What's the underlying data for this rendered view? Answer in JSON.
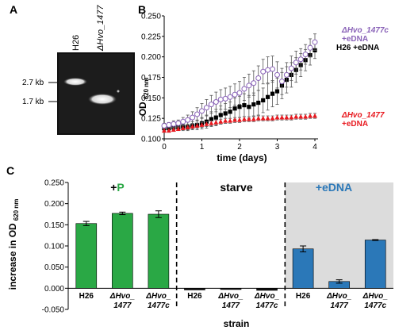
{
  "panels": {
    "A": "A",
    "B": "B",
    "C": "C"
  },
  "gel": {
    "lanes": [
      "H26",
      "ΔHvo_1477"
    ],
    "size_markers": [
      "2.7 kb",
      "1.7 kb"
    ],
    "bands": [
      {
        "lane": "H26",
        "marker": "2.7 kb"
      },
      {
        "lane": "ΔHvo_1477",
        "marker": "1.7 kb"
      }
    ]
  },
  "colors": {
    "h26": "#000000",
    "delta": "#e8191f",
    "comp": "#8a63b8",
    "green": "#2aa845",
    "blue": "#2b78b8",
    "shade": "#dcdcdc"
  },
  "chart_b": {
    "type": "scatter",
    "ylabel_main": "OD",
    "ylabel_sub": "620 nm",
    "xlabel": "time (days)",
    "x_ticks": [
      "0",
      "1",
      "2",
      "3",
      "4"
    ],
    "y_ticks": [
      "0.100",
      "0.125",
      "0.150",
      "0.175",
      "0.200",
      "0.225",
      "0.250"
    ],
    "legend": {
      "comp_line1": "ΔHvo_1477c",
      "comp_line2": "+eDNA",
      "h26": "H26 +eDNA",
      "delta_line1": "ΔHvo_1477",
      "delta_line2": "+eDNA"
    }
  },
  "chart_c": {
    "type": "bar",
    "ylabel_main": "increase in OD",
    "ylabel_sub": "620 nm",
    "xlabel": "strain",
    "y_ticks": [
      "0.250",
      "0.200",
      "0.150",
      "0.100",
      "0.050",
      "0.000",
      "-0.050"
    ],
    "groups": [
      {
        "label_prefix": "+",
        "label_main": "P"
      },
      {
        "label_main": "starve"
      },
      {
        "label_main": "+eDNA"
      }
    ],
    "x_labels": [
      [
        "H26"
      ],
      [
        "ΔHvo_",
        "1477"
      ],
      [
        "ΔHvo_",
        "1477c"
      ],
      [
        "H26"
      ],
      [
        "ΔHvo_",
        "1477"
      ],
      [
        "ΔHvo_",
        "1477c"
      ],
      [
        "H26"
      ],
      [
        "ΔHvo_",
        "1477"
      ],
      [
        "ΔHvo_",
        "1477c"
      ]
    ]
  },
  "chart_data": [
    {
      "type": "scatter",
      "title": "",
      "xlabel": "time (days)",
      "ylabel": "OD 620 nm",
      "xlim": [
        0,
        4
      ],
      "ylim": [
        0.1,
        0.25
      ],
      "series": [
        {
          "name": "H26 +eDNA",
          "marker": "filled-square",
          "x": [
            0,
            0.125,
            0.25,
            0.375,
            0.5,
            0.625,
            0.75,
            0.875,
            1,
            1.125,
            1.25,
            1.375,
            1.5,
            1.625,
            1.75,
            1.875,
            2,
            2.125,
            2.25,
            2.375,
            2.5,
            2.625,
            2.75,
            2.875,
            3,
            3.125,
            3.25,
            3.375,
            3.5,
            3.625,
            3.75,
            3.875,
            4
          ],
          "y": [
            0.113,
            0.113,
            0.114,
            0.114,
            0.115,
            0.114,
            0.116,
            0.117,
            0.119,
            0.121,
            0.124,
            0.126,
            0.129,
            0.131,
            0.133,
            0.137,
            0.139,
            0.141,
            0.139,
            0.142,
            0.144,
            0.147,
            0.151,
            0.155,
            0.158,
            0.165,
            0.172,
            0.178,
            0.184,
            0.19,
            0.196,
            0.202,
            0.208
          ],
          "error": [
            0.003,
            0.003,
            0.003,
            0.003,
            0.004,
            0.004,
            0.005,
            0.006,
            0.007,
            0.008,
            0.009,
            0.01,
            0.011,
            0.012,
            0.012,
            0.013,
            0.013,
            0.014,
            0.014,
            0.014,
            0.015,
            0.015,
            0.016,
            0.016,
            0.016,
            0.016,
            0.016,
            0.015,
            0.015,
            0.014,
            0.013,
            0.012,
            0.01
          ]
        },
        {
          "name": "ΔHvo_1477c +eDNA",
          "marker": "open-circle",
          "x": [
            0,
            0.125,
            0.25,
            0.375,
            0.5,
            0.625,
            0.75,
            0.875,
            1,
            1.125,
            1.25,
            1.375,
            1.5,
            1.625,
            1.75,
            1.875,
            2,
            2.125,
            2.25,
            2.375,
            2.5,
            2.625,
            2.75,
            2.875,
            3,
            3.125,
            3.25,
            3.375,
            3.5,
            3.625,
            3.75,
            3.875,
            4
          ],
          "y": [
            0.116,
            0.117,
            0.118,
            0.119,
            0.121,
            0.123,
            0.126,
            0.13,
            0.134,
            0.138,
            0.142,
            0.145,
            0.148,
            0.149,
            0.151,
            0.154,
            0.156,
            0.161,
            0.165,
            0.168,
            0.174,
            0.182,
            0.184,
            0.185,
            0.178,
            0.17,
            0.178,
            0.186,
            0.193,
            0.197,
            0.203,
            0.211,
            0.218
          ],
          "error": [
            0.003,
            0.003,
            0.004,
            0.004,
            0.005,
            0.006,
            0.007,
            0.008,
            0.009,
            0.01,
            0.011,
            0.012,
            0.012,
            0.013,
            0.013,
            0.013,
            0.014,
            0.014,
            0.014,
            0.015,
            0.015,
            0.015,
            0.016,
            0.016,
            0.016,
            0.016,
            0.015,
            0.015,
            0.014,
            0.013,
            0.012,
            0.011,
            0.01
          ]
        },
        {
          "name": "ΔHvo_1477 +eDNA",
          "marker": "filled-triangle",
          "x": [
            0,
            0.125,
            0.25,
            0.375,
            0.5,
            0.625,
            0.75,
            0.875,
            1,
            1.125,
            1.25,
            1.375,
            1.5,
            1.625,
            1.75,
            1.875,
            2,
            2.125,
            2.25,
            2.375,
            2.5,
            2.625,
            2.75,
            2.875,
            3,
            3.125,
            3.25,
            3.375,
            3.5,
            3.625,
            3.75,
            3.875,
            4
          ],
          "y": [
            0.11,
            0.11,
            0.111,
            0.112,
            0.113,
            0.114,
            0.115,
            0.116,
            0.117,
            0.118,
            0.119,
            0.12,
            0.121,
            0.122,
            0.122,
            0.123,
            0.123,
            0.124,
            0.124,
            0.124,
            0.125,
            0.125,
            0.125,
            0.125,
            0.126,
            0.126,
            0.126,
            0.126,
            0.127,
            0.127,
            0.127,
            0.128,
            0.128
          ],
          "error": [
            0.002,
            0.002,
            0.002,
            0.002,
            0.003,
            0.003,
            0.003,
            0.003,
            0.003,
            0.003,
            0.003,
            0.003,
            0.003,
            0.003,
            0.003,
            0.003,
            0.003,
            0.003,
            0.003,
            0.003,
            0.003,
            0.003,
            0.003,
            0.003,
            0.003,
            0.003,
            0.003,
            0.003,
            0.003,
            0.003,
            0.003,
            0.003,
            0.003
          ]
        }
      ]
    },
    {
      "type": "bar",
      "title": "",
      "xlabel": "strain",
      "ylabel": "increase in OD 620 nm",
      "ylim": [
        -0.05,
        0.25
      ],
      "groups": [
        "+P",
        "starve",
        "+eDNA"
      ],
      "categories": [
        "H26",
        "ΔHvo_1477",
        "ΔHvo_1477c",
        "H26",
        "ΔHvo_1477",
        "ΔHvo_1477c",
        "H26",
        "ΔHvo_1477",
        "ΔHvo_1477c"
      ],
      "values": [
        0.153,
        0.177,
        0.175,
        -0.004,
        -0.001,
        -0.005,
        0.093,
        0.016,
        0.114
      ],
      "errors": [
        0.005,
        0.003,
        0.008,
        0.001,
        0.001,
        0.001,
        0.007,
        0.004,
        0.001
      ],
      "bar_colors": [
        "#2aa845",
        "#2aa845",
        "#2aa845",
        "#111111",
        "#111111",
        "#111111",
        "#2b78b8",
        "#2b78b8",
        "#2b78b8"
      ]
    }
  ]
}
